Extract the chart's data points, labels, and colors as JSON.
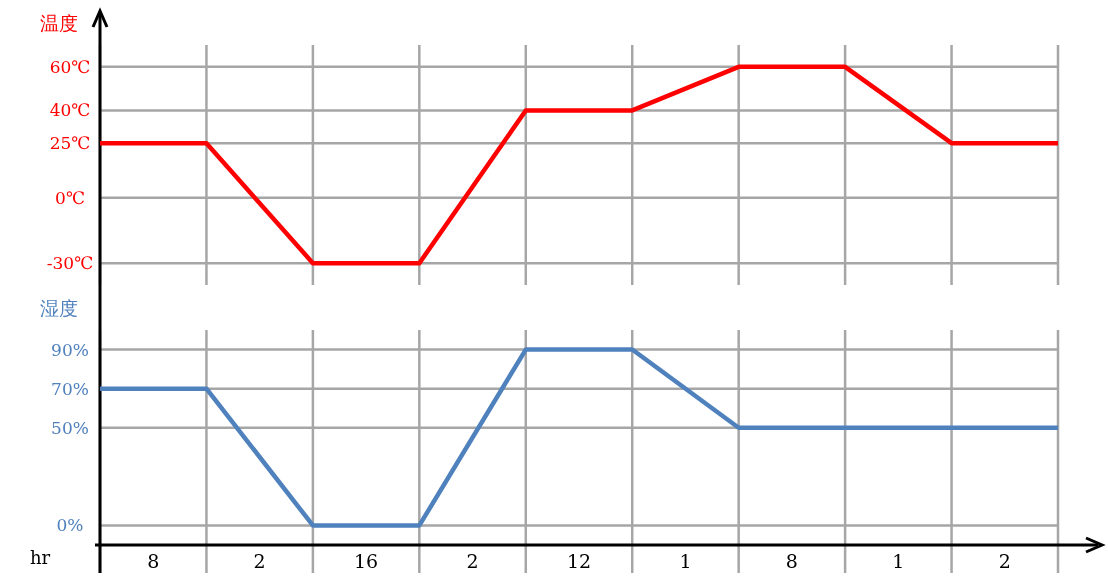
{
  "chart_data": [
    {
      "type": "line",
      "ylabel": "温度",
      "categories": [
        null,
        null,
        null,
        null,
        null,
        null,
        null,
        null,
        null,
        null
      ],
      "series": [
        {
          "color": "#ff0000",
          "values": [
            25,
            25,
            -30,
            -30,
            40,
            40,
            60,
            60,
            25,
            25
          ]
        }
      ],
      "ylim": [
        -40,
        70
      ],
      "yticks": [
        {
          "value": 60,
          "label": "60℃"
        },
        {
          "value": 40,
          "label": "40℃"
        },
        {
          "value": 25,
          "label": "25℃"
        },
        {
          "value": 0,
          "label": "0℃"
        },
        {
          "value": -30,
          "label": "-30℃"
        }
      ],
      "grid": true,
      "tick_labels": "y"
    },
    {
      "type": "line",
      "ylabel": "湿度",
      "xlabel": "hr",
      "categories": [
        null,
        null,
        null,
        null,
        null,
        null,
        null,
        null,
        null,
        null
      ],
      "series": [
        {
          "color": "#4f81bd",
          "values": [
            70,
            70,
            0,
            0,
            90,
            90,
            50,
            50,
            50,
            50
          ]
        }
      ],
      "ylim": [
        -10,
        100
      ],
      "yticks": [
        {
          "value": 90,
          "label": "90%"
        },
        {
          "value": 70,
          "label": "70%"
        },
        {
          "value": 50,
          "label": "50%"
        },
        {
          "value": 0,
          "label": "0%"
        }
      ],
      "grid": true,
      "annotations": [
        "8",
        "2",
        "16",
        "2",
        "12",
        "1",
        "8",
        "1",
        "2"
      ]
    }
  ]
}
